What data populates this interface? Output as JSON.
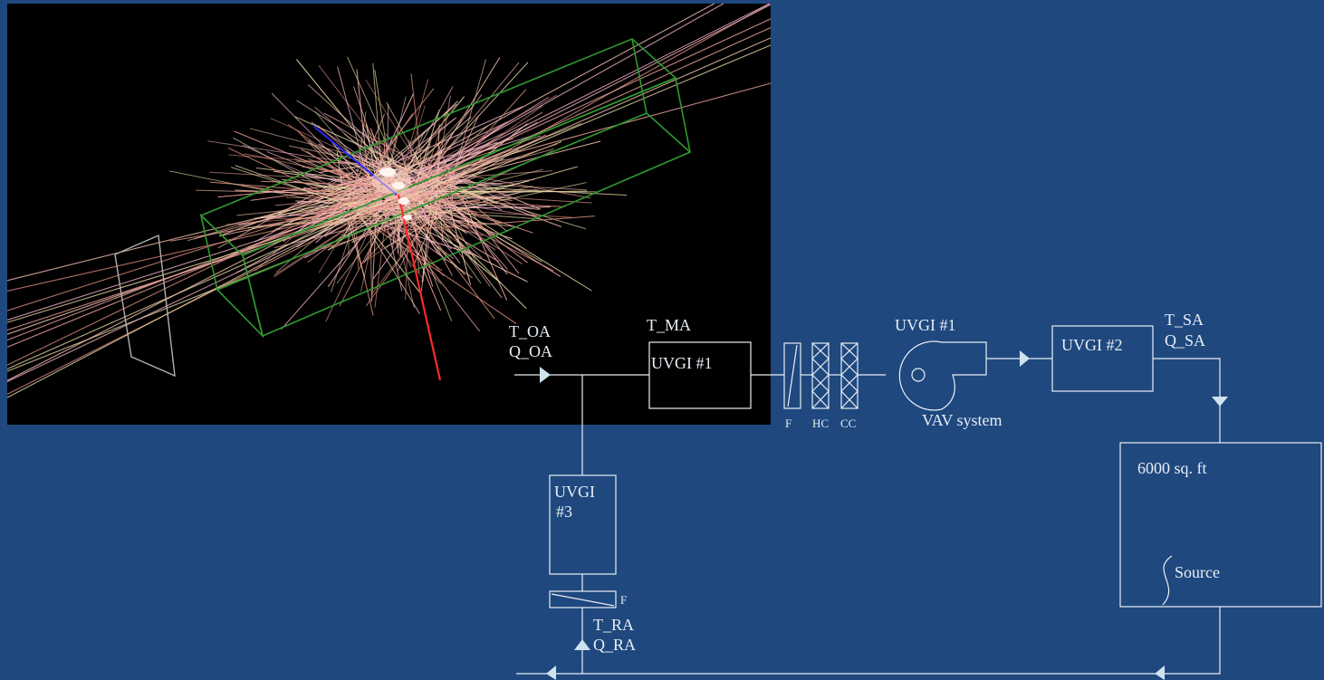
{
  "simulation_panel": {
    "background": "#000000",
    "box_color": "#2f9a2f",
    "track_colors": [
      "#f4a8a0",
      "#f7c6b0",
      "#e9d8a6",
      "#d98b7c",
      "#f2b3c6"
    ],
    "core_color": "#ffe0d8",
    "axis_x_color": "#ff2a2a",
    "axis_y_color": "#2a2aff",
    "plane_color": "#b0b0b0"
  },
  "diagram": {
    "line_color": "#e8eef6",
    "arrow_color": "#cfe3ef",
    "outside_air": {
      "temp": "T_OA",
      "flow": "Q_OA"
    },
    "mixed_air": {
      "temp": "T_MA"
    },
    "uvgi1_duct": {
      "label": "UVGI #1"
    },
    "filter": {
      "label": "F"
    },
    "heating_coil": {
      "label": "HC"
    },
    "cooling_coil": {
      "label": "CC"
    },
    "fan": {
      "title": "UVGI #1",
      "caption": "VAV system"
    },
    "uvgi2": {
      "label": "UVGI #2"
    },
    "supply_air": {
      "temp": "T_SA",
      "flow": "Q_SA"
    },
    "zone": {
      "area": "6000 sq. ft",
      "source": "Source"
    },
    "uvgi3": {
      "line1": "UVGI",
      "line2": "#3"
    },
    "return_filter": {
      "label": "F"
    },
    "return_air": {
      "temp": "T_RA",
      "flow": "Q_RA"
    }
  }
}
